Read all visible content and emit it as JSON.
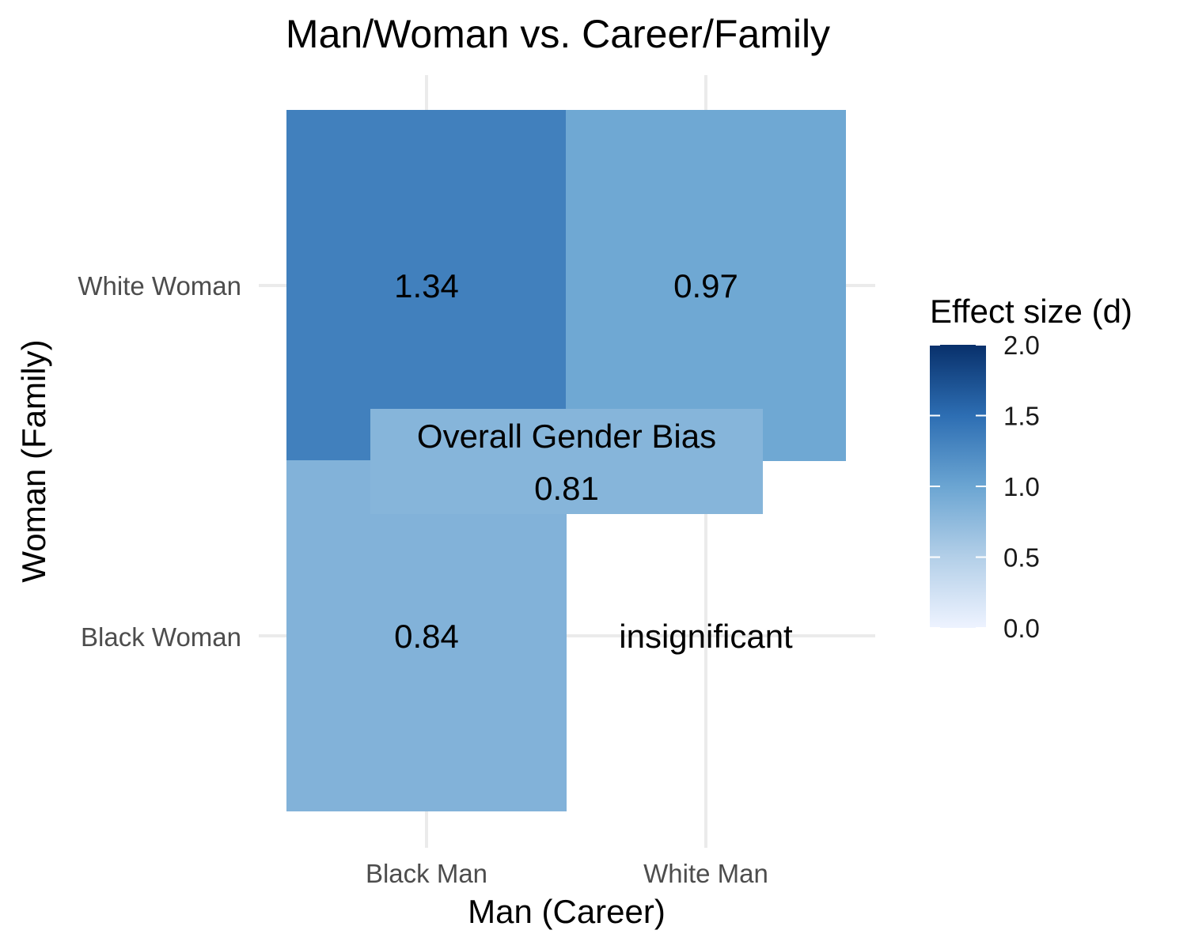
{
  "chart_data": {
    "type": "heatmap",
    "title": "Man/Woman vs. Career/Family",
    "xlabel": "Man (Career)",
    "ylabel": "Woman (Family)",
    "x_categories": [
      "Black Man",
      "White Man"
    ],
    "y_categories": [
      "Black Woman",
      "White Woman"
    ],
    "cells": [
      {
        "x": "Black Man",
        "y": "White Woman",
        "value": 1.34,
        "label": "1.34"
      },
      {
        "x": "White Man",
        "y": "White Woman",
        "value": 0.97,
        "label": "0.97"
      },
      {
        "x": "Black Man",
        "y": "Black Woman",
        "value": 0.84,
        "label": "0.84"
      },
      {
        "x": "White Man",
        "y": "Black Woman",
        "value": null,
        "label": "insignificant"
      }
    ],
    "overall": {
      "label": "Overall Gender Bias",
      "value": 0.81,
      "value_label": "0.81"
    },
    "legend": {
      "title": "Effect size (d)",
      "range": [
        0,
        2
      ],
      "ticks": [
        "0.0",
        "0.5",
        "1.0",
        "1.5",
        "2.0"
      ],
      "color_low": "#eef3ff",
      "color_high": "#08306b",
      "placement": "right"
    },
    "grid": true
  }
}
